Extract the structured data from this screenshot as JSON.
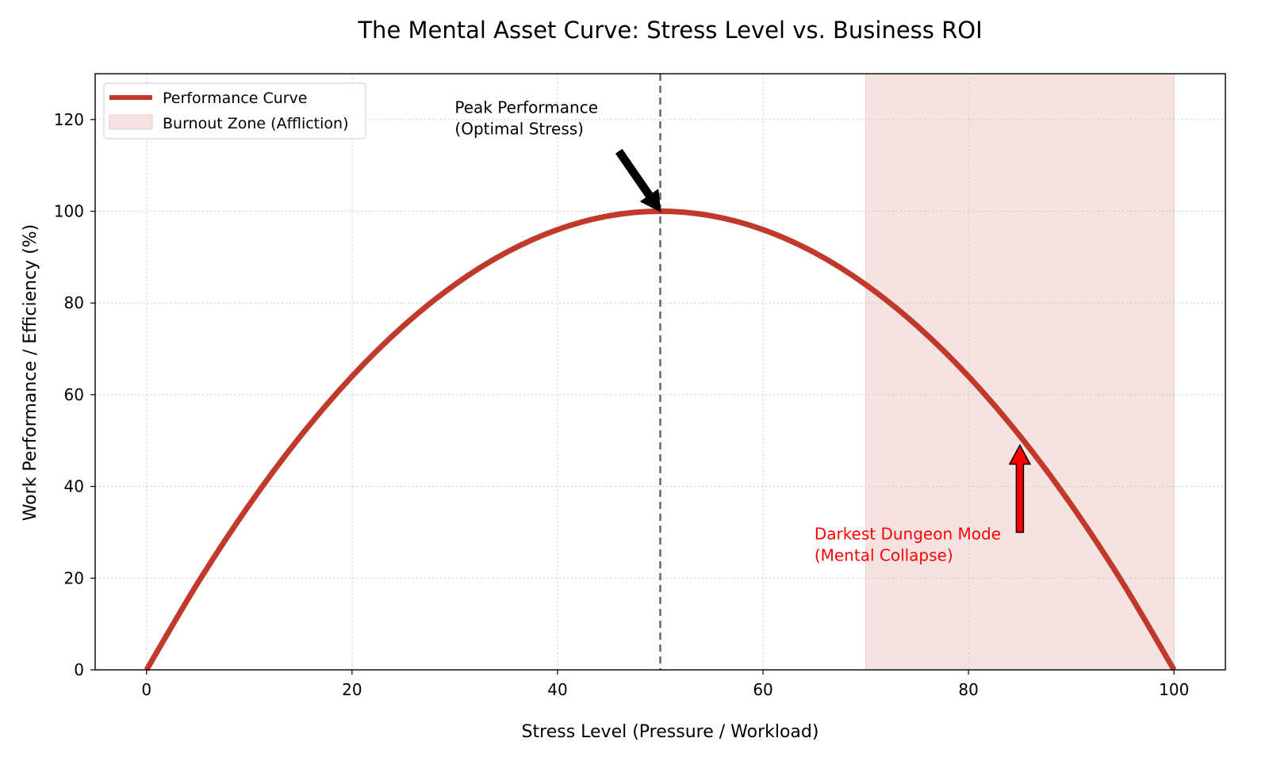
{
  "chart_data": {
    "type": "line",
    "title": "The Mental Asset Curve: Stress Level vs. Business ROI",
    "xlabel": "Stress Level (Pressure / Workload)",
    "ylabel": "Work Performance / Efficiency (%)",
    "xlim": [
      -5,
      105
    ],
    "ylim": [
      0,
      130
    ],
    "xticks": [
      0,
      20,
      40,
      60,
      80,
      100
    ],
    "yticks": [
      0,
      20,
      40,
      60,
      80,
      100,
      120
    ],
    "grid": true,
    "legend_position": "top-left",
    "series": [
      {
        "name": "Performance Curve",
        "color": "#c0392b",
        "x": [
          0,
          5,
          10,
          15,
          20,
          25,
          30,
          35,
          40,
          45,
          50,
          55,
          60,
          65,
          70,
          75,
          80,
          85,
          90,
          95,
          100
        ],
        "y": [
          0,
          19,
          36,
          51,
          64,
          75,
          84,
          91,
          96,
          99,
          100,
          99,
          96,
          91,
          84,
          75,
          64,
          51,
          36,
          19,
          0
        ]
      }
    ],
    "shaded_regions": [
      {
        "name": "Burnout Zone (Affliction)",
        "x_start": 70,
        "x_end": 100,
        "color": "#f5e3e2"
      }
    ],
    "reference_lines": [
      {
        "type": "vertical",
        "x": 50,
        "style": "dashed",
        "color": "#666666"
      }
    ],
    "annotations": [
      {
        "lines": [
          "Peak Performance",
          "(Optimal Stress)"
        ],
        "text_x": 30,
        "text_y": 118,
        "arrow_to": [
          50,
          100
        ],
        "arrow_from": [
          46,
          113
        ],
        "color": "#000000"
      },
      {
        "lines": [
          "Darkest Dungeon Mode",
          "(Mental Collapse)"
        ],
        "text_x": 65,
        "text_y": 25,
        "arrow_to": [
          85,
          49
        ],
        "arrow_from": [
          85,
          30
        ],
        "color": "#ff0000"
      }
    ]
  }
}
